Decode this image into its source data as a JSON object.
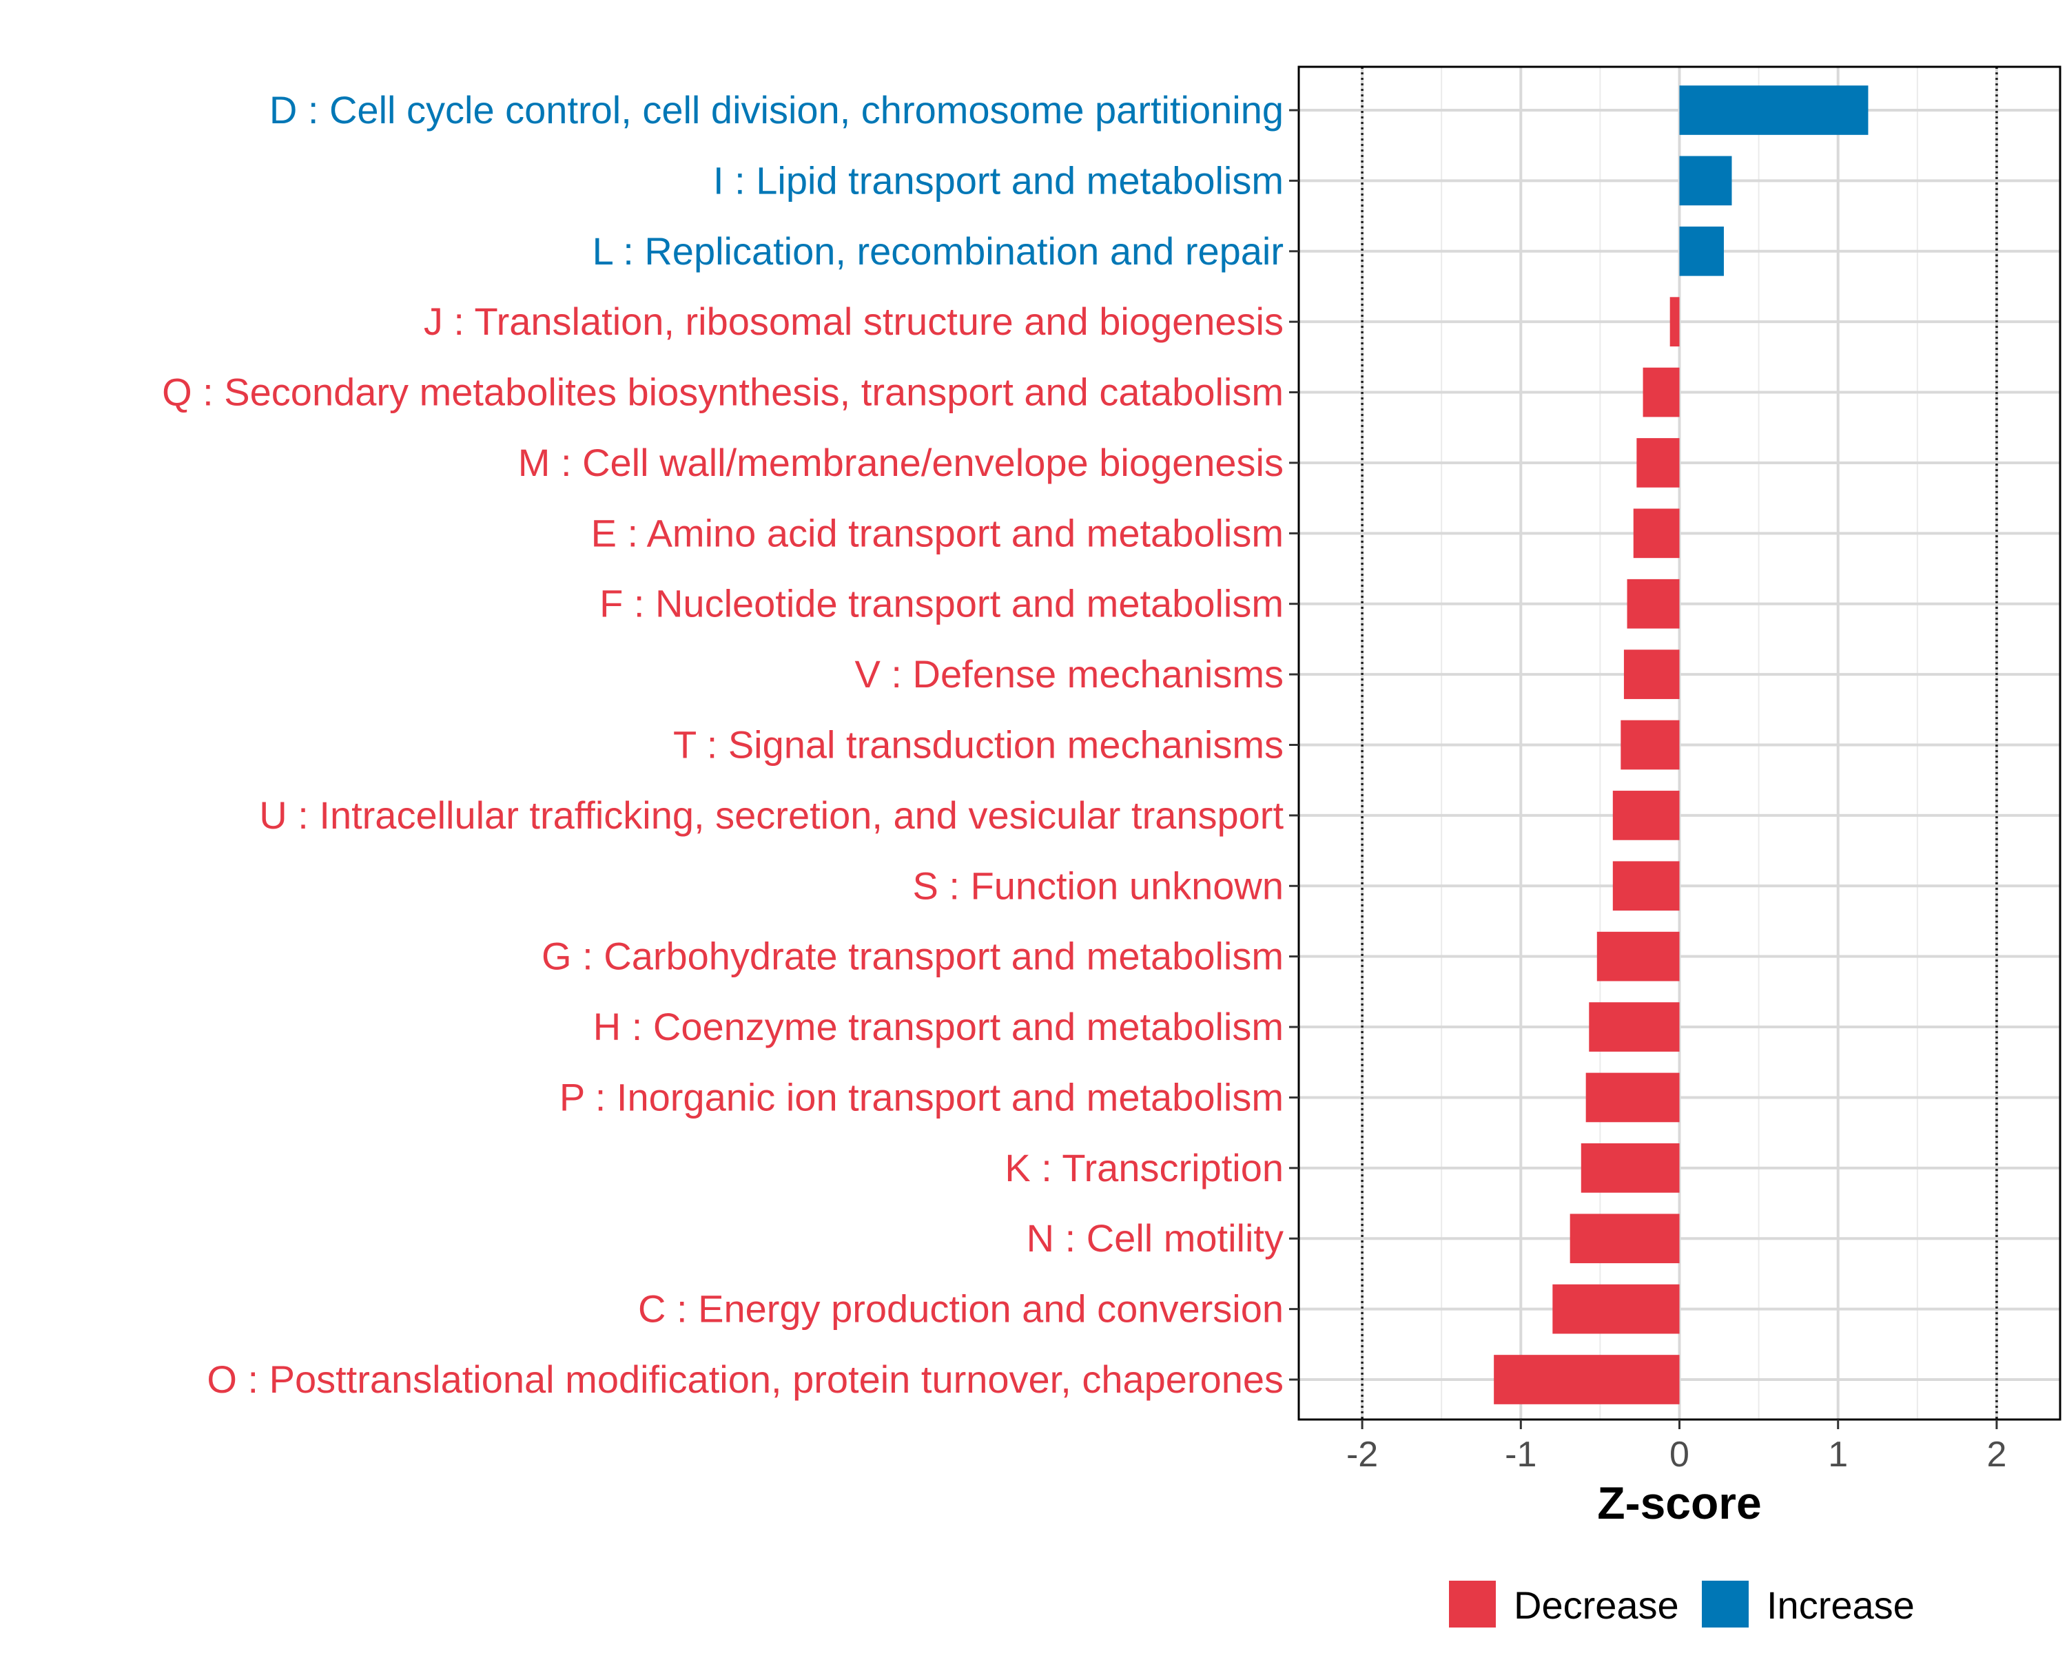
{
  "chart_data": {
    "type": "bar",
    "orientation": "horizontal",
    "title": "",
    "xlabel": "Z-score",
    "ylabel": "",
    "xlim": [
      -2.4,
      2.4
    ],
    "x_ticks": [
      -2,
      -1,
      0,
      1,
      2
    ],
    "x_tick_labels": [
      "-2",
      "-1",
      "0",
      "1",
      "2"
    ],
    "reference_lines": [
      -2,
      2
    ],
    "grid": true,
    "legend_position": "bottom",
    "legend": [
      {
        "label": "Decrease",
        "color": "#E63946"
      },
      {
        "label": "Increase",
        "color": "#0077B6"
      }
    ],
    "categories": [
      "D : Cell cycle control, cell division, chromosome partitioning",
      "I : Lipid transport and metabolism",
      "L : Replication, recombination and repair",
      "J : Translation, ribosomal structure and biogenesis",
      "Q : Secondary metabolites biosynthesis, transport and catabolism",
      "M : Cell wall/membrane/envelope biogenesis",
      "E : Amino acid transport and metabolism",
      "F : Nucleotide transport and metabolism",
      "V : Defense mechanisms",
      "T : Signal transduction mechanisms",
      "U : Intracellular trafficking, secretion, and vesicular transport",
      "S : Function unknown",
      "G : Carbohydrate transport and metabolism",
      "H : Coenzyme transport and metabolism",
      "P : Inorganic ion transport and metabolism",
      "K : Transcription",
      "N : Cell motility",
      "C : Energy production and conversion",
      "O : Posttranslational modification, protein turnover, chaperones"
    ],
    "values": [
      1.19,
      0.33,
      0.28,
      -0.06,
      -0.23,
      -0.27,
      -0.29,
      -0.33,
      -0.35,
      -0.37,
      -0.42,
      -0.42,
      -0.52,
      -0.57,
      -0.59,
      -0.62,
      -0.69,
      -0.8,
      -1.17
    ],
    "groups": [
      "Increase",
      "Increase",
      "Increase",
      "Decrease",
      "Decrease",
      "Decrease",
      "Decrease",
      "Decrease",
      "Decrease",
      "Decrease",
      "Decrease",
      "Decrease",
      "Decrease",
      "Decrease",
      "Decrease",
      "Decrease",
      "Decrease",
      "Decrease",
      "Decrease"
    ]
  }
}
